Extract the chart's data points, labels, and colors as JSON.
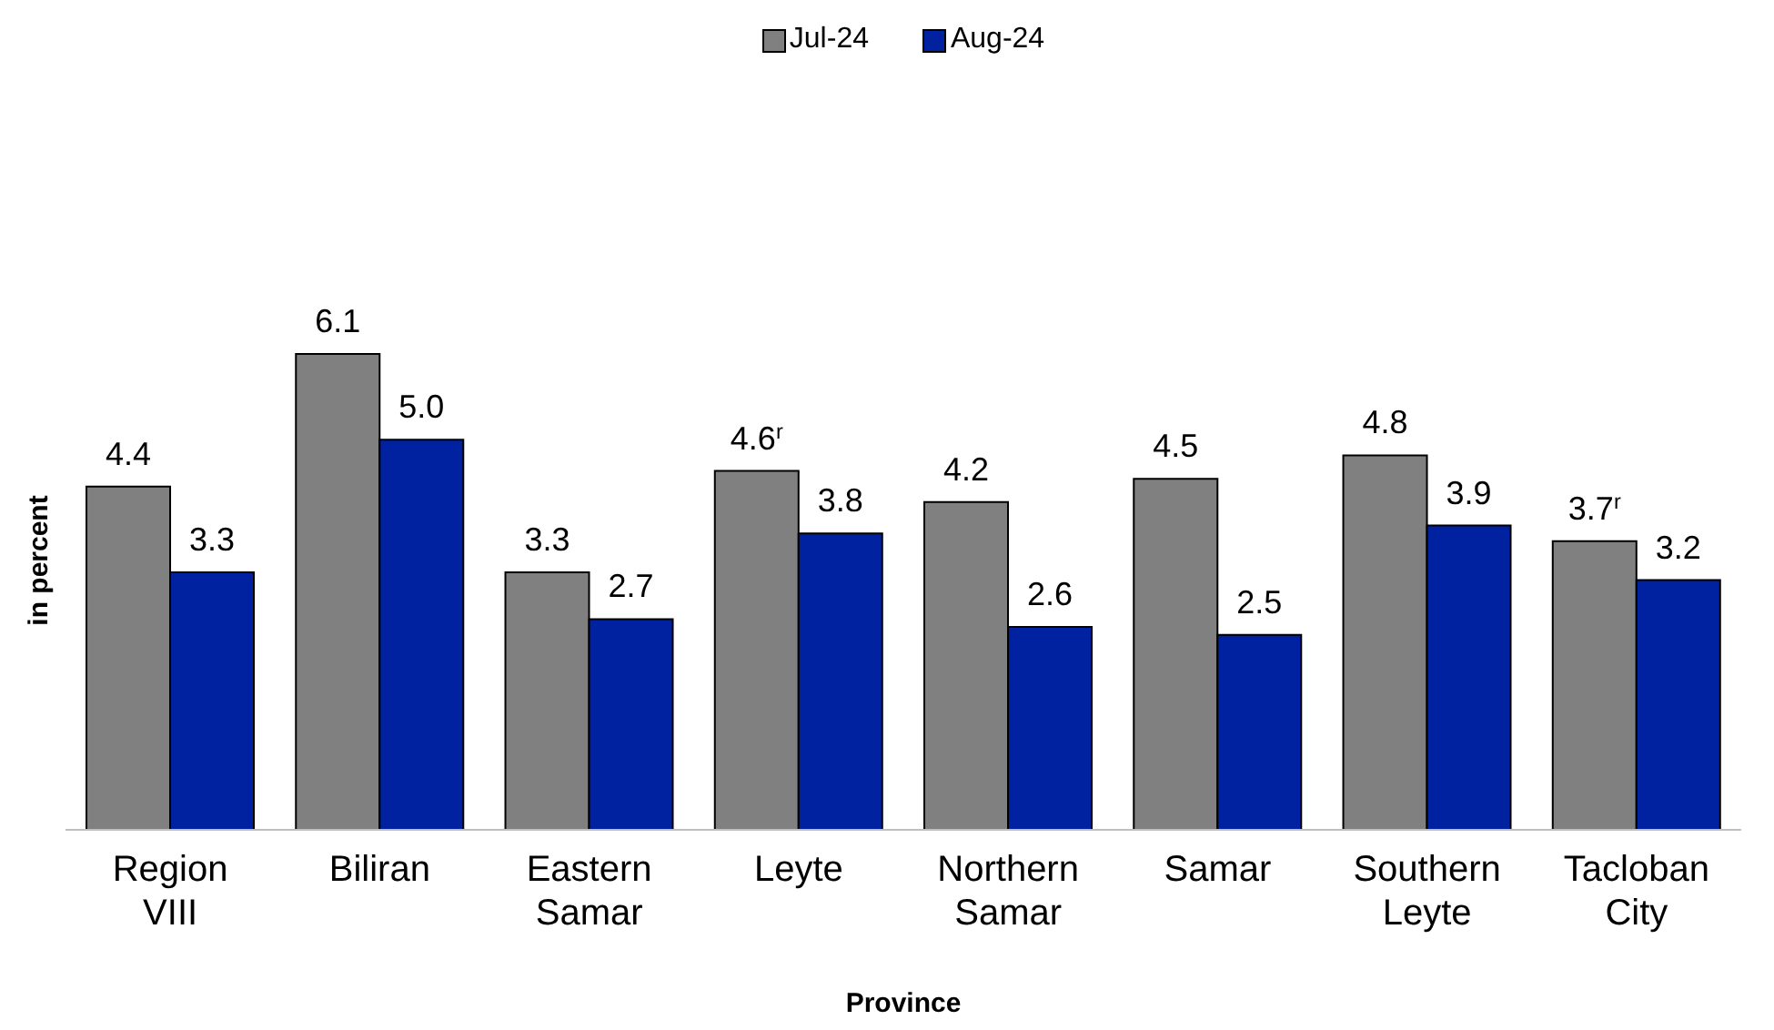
{
  "chart_data": {
    "type": "bar",
    "xlabel": "Province",
    "ylabel": "in percent",
    "categories": [
      "Region VIII",
      "Biliran",
      "Eastern Samar",
      "Leyte",
      "Northern Samar",
      "Samar",
      "Southern Leyte",
      "Tacloban City"
    ],
    "series": [
      {
        "name": "Jul-24",
        "color": "#808080",
        "values": [
          4.4,
          6.1,
          3.3,
          4.6,
          4.2,
          4.5,
          4.8,
          3.7
        ],
        "value_labels": [
          "4.4",
          "6.1",
          "3.3",
          "4.6$^{r}$",
          "4.2",
          "4.5",
          "4.8",
          "3.7$^{r}$"
        ]
      },
      {
        "name": "Aug-24",
        "color": "#0022a0",
        "values": [
          3.3,
          5.0,
          2.7,
          3.8,
          2.6,
          2.5,
          3.9,
          3.2
        ],
        "value_labels": [
          "3.3",
          "5.0",
          "2.7",
          "3.8",
          "2.6",
          "2.5",
          "3.9",
          "3.2"
        ]
      }
    ],
    "tick_labels": "x",
    "legend": "top"
  }
}
